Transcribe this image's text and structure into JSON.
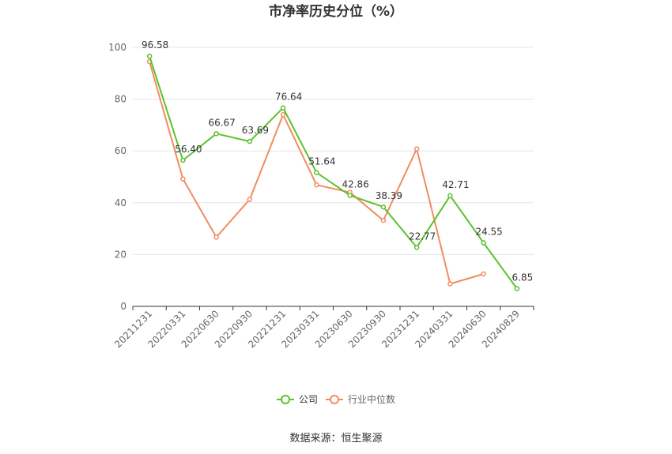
{
  "chart_data": {
    "type": "line",
    "title": "市净率历史分位（%）",
    "xlabel": "",
    "ylabel": "",
    "categories": [
      "20211231",
      "20220331",
      "20220630",
      "20220930",
      "20221231",
      "20230331",
      "20230630",
      "20230930",
      "20231231",
      "20240331",
      "20240630",
      "20240829"
    ],
    "ylim": [
      0,
      100
    ],
    "yticks": [
      0,
      20,
      40,
      60,
      80,
      100
    ],
    "grid": true,
    "legend_position": "bottom-center",
    "series": [
      {
        "name": "公司",
        "color": "#5cc22d",
        "values": [
          96.58,
          56.4,
          66.67,
          63.69,
          76.64,
          51.64,
          42.86,
          38.39,
          22.77,
          42.71,
          24.55,
          6.85
        ],
        "labels": [
          "96.58",
          "56.40",
          "66.67",
          "63.69",
          "76.64",
          "51.64",
          "42.86",
          "38.39",
          "22.77",
          "42.71",
          "24.55",
          "6.85"
        ]
      },
      {
        "name": "行业中位数",
        "color": "#f08c60",
        "values": [
          94.5,
          49.2,
          26.7,
          41.3,
          74.0,
          46.9,
          44.0,
          33.2,
          60.8,
          8.7,
          12.5,
          null
        ]
      }
    ]
  },
  "source": "数据来源：恒生聚源"
}
